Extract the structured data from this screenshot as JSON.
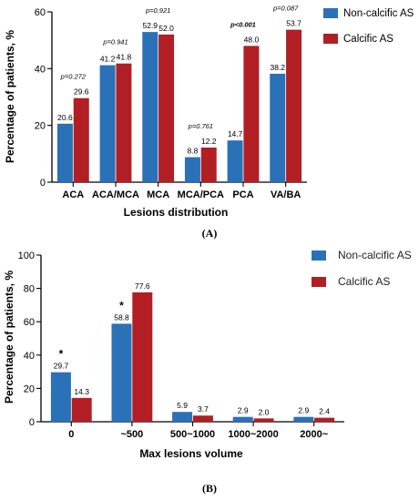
{
  "chart_data": [
    {
      "type": "bar",
      "ylabel": "Percentage of patients, %",
      "xlabel": "Lesions distribution",
      "ylim": [
        0,
        60
      ],
      "yticks": [
        "0",
        "20",
        "40",
        "60"
      ],
      "categories": [
        "ACA",
        "ACA/MCA",
        "MCA",
        "MCA/PCA",
        "PCA",
        "VA/BA"
      ],
      "series": [
        {
          "name": "Non-calcific AS",
          "color": "#2a71b8",
          "values": [
            20.6,
            41.2,
            52.9,
            8.8,
            14.7,
            38.2
          ],
          "labels": [
            "20.6",
            "41.2",
            "52.9",
            "8.8",
            "14.7",
            "38.2"
          ]
        },
        {
          "name": "Calcific AS",
          "color": "#b11f24",
          "values": [
            29.6,
            41.8,
            52.0,
            12.2,
            48.0,
            53.7
          ],
          "labels": [
            "29.6",
            "41.8",
            "52.0",
            "12.2",
            "48.0",
            "53.7"
          ]
        }
      ],
      "p_values": [
        {
          "text": "p=0.272",
          "prefix": "p",
          "rest": "=0.272",
          "bold": false
        },
        {
          "text": "p=0.941",
          "prefix": "p",
          "rest": "=0.941",
          "bold": false
        },
        {
          "text": "p=0.921",
          "prefix": "p",
          "rest": "=0.921",
          "bold": false
        },
        {
          "text": "p=0.761",
          "prefix": "p",
          "rest": "=0.761",
          "bold": false
        },
        {
          "text": "p<0.001",
          "prefix": "p",
          "rest": "<0.001",
          "bold": true
        },
        {
          "text": "p=0.087",
          "prefix": "p",
          "rest": "=0.087",
          "bold": false
        }
      ],
      "legend_position": "top-right",
      "panel_label": "(A)"
    },
    {
      "type": "bar",
      "ylabel": "Percentage of patients, %",
      "xlabel": "Max lesions volume",
      "ylim": [
        0,
        100
      ],
      "yticks": [
        "0",
        "20",
        "40",
        "60",
        "80",
        "100"
      ],
      "categories": [
        "0",
        "~500",
        "500~1000",
        "1000~2000",
        "2000~"
      ],
      "series": [
        {
          "name": "Non-calcific AS",
          "color": "#2a71b8",
          "values": [
            29.7,
            58.8,
            5.9,
            2.9,
            2.9
          ],
          "labels": [
            "29.7",
            "58.8",
            "5.9",
            "2.9",
            "2.9"
          ]
        },
        {
          "name": "Calcific AS",
          "color": "#b11f24",
          "values": [
            14.3,
            77.6,
            3.7,
            2.0,
            2.4
          ],
          "labels": [
            "14.3",
            "77.6",
            "3.7",
            "2.0",
            "2.4"
          ]
        }
      ],
      "significance": [
        "*",
        "*",
        "",
        "",
        ""
      ],
      "legend_position": "top-right",
      "panel_label": "(B)"
    }
  ]
}
